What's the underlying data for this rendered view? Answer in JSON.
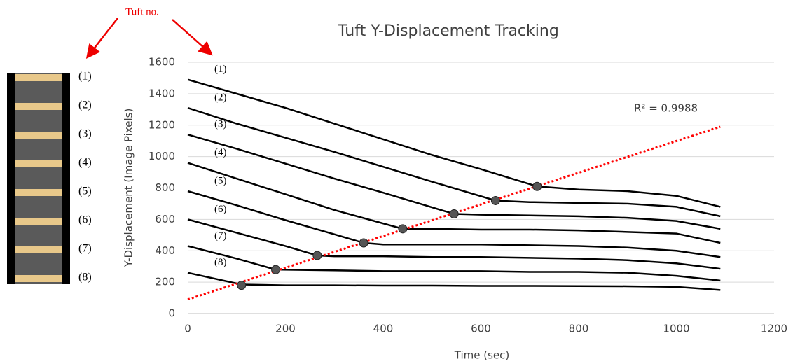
{
  "chart_data": {
    "type": "line",
    "title": "Tuft Y-Displacement Tracking",
    "x_label": "Time (sec)",
    "y_label": "Y-Displacement (Image Pixels)",
    "annotation": "Tuft no.",
    "xlim": [
      0,
      1200
    ],
    "xticks": [
      0,
      200,
      400,
      600,
      800,
      1000,
      1200
    ],
    "ylim": [
      0,
      1600
    ],
    "yticks": [
      0,
      200,
      400,
      600,
      800,
      1000,
      1200,
      1400,
      1600
    ],
    "grid": true,
    "series": [
      {
        "name": "(1)",
        "color": "#000000",
        "x": [
          0,
          100,
          200,
          300,
          400,
          500,
          600,
          715,
          800,
          900,
          1000,
          1090
        ],
        "values": [
          1490,
          1400,
          1310,
          1210,
          1110,
          1010,
          920,
          810,
          790,
          780,
          750,
          680
        ]
      },
      {
        "name": "(2)",
        "color": "#000000",
        "x": [
          0,
          100,
          200,
          300,
          400,
          500,
          630,
          700,
          800,
          900,
          1000,
          1090
        ],
        "values": [
          1310,
          1210,
          1120,
          1030,
          935,
          840,
          720,
          710,
          705,
          700,
          680,
          620
        ]
      },
      {
        "name": "(3)",
        "color": "#000000",
        "x": [
          0,
          100,
          200,
          300,
          400,
          545,
          600,
          700,
          800,
          900,
          1000,
          1090
        ],
        "values": [
          1140,
          1050,
          955,
          860,
          770,
          635,
          630,
          625,
          620,
          610,
          590,
          540
        ]
      },
      {
        "name": "(4)",
        "color": "#000000",
        "x": [
          0,
          100,
          200,
          300,
          440,
          500,
          600,
          700,
          800,
          900,
          1000,
          1090
        ],
        "values": [
          960,
          860,
          760,
          660,
          540,
          540,
          535,
          535,
          530,
          520,
          510,
          450
        ]
      },
      {
        "name": "(5)",
        "color": "#000000",
        "x": [
          0,
          100,
          200,
          300,
          360,
          400,
          500,
          600,
          700,
          800,
          900,
          1000,
          1090
        ],
        "values": [
          780,
          690,
          595,
          505,
          450,
          440,
          440,
          440,
          435,
          430,
          420,
          400,
          360
        ]
      },
      {
        "name": "(6)",
        "color": "#000000",
        "x": [
          0,
          100,
          200,
          265,
          300,
          400,
          500,
          600,
          700,
          800,
          900,
          1000,
          1090
        ],
        "values": [
          600,
          515,
          430,
          370,
          365,
          365,
          360,
          360,
          355,
          350,
          340,
          320,
          285
        ]
      },
      {
        "name": "(7)",
        "color": "#000000",
        "x": [
          0,
          100,
          180,
          300,
          400,
          500,
          600,
          700,
          800,
          900,
          1000,
          1090
        ],
        "values": [
          430,
          350,
          280,
          275,
          270,
          270,
          270,
          265,
          265,
          260,
          240,
          210
        ]
      },
      {
        "name": "(8)",
        "color": "#000000",
        "x": [
          0,
          110,
          200,
          300,
          400,
          500,
          600,
          700,
          800,
          900,
          1000,
          1090
        ],
        "values": [
          260,
          185,
          180,
          180,
          178,
          178,
          176,
          176,
          175,
          174,
          170,
          150
        ]
      }
    ],
    "points": {
      "color": "#555555",
      "x": [
        110,
        180,
        265,
        360,
        440,
        545,
        630,
        715
      ],
      "values": [
        180,
        280,
        370,
        450,
        540,
        635,
        720,
        810
      ]
    },
    "trendline": {
      "color": "#ff0000",
      "x": [
        0,
        1090
      ],
      "values": [
        90,
        1190
      ],
      "label": "R² = 0.9988"
    }
  }
}
